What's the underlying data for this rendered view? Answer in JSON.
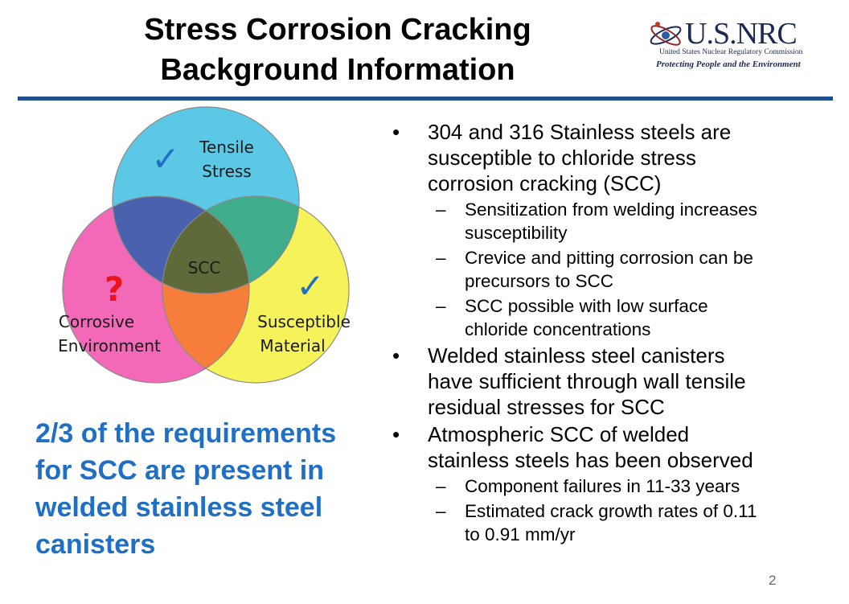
{
  "title": {
    "line1": "Stress Corrosion Cracking",
    "line2": "Background Information"
  },
  "logo": {
    "name": "U.S.NRC",
    "subtitle": "United States Nuclear Regulatory Commission",
    "tagline": "Protecting People and the Environment"
  },
  "venn": {
    "top": {
      "label_line1": "Tensile",
      "label_line2": "Stress",
      "mark": "✓"
    },
    "left": {
      "label_line1": "Corrosive",
      "label_line2": "Environment",
      "mark": "?"
    },
    "right": {
      "label_line1": "Susceptible",
      "label_line2": "Material",
      "mark": "✓"
    },
    "center": "SCC",
    "colors": {
      "top": "#5bc8e6",
      "left": "#f468b8",
      "right": "#f6f25a",
      "check": "#1f6fc4",
      "question": "#e8141b"
    }
  },
  "callout": {
    "line1": "2/3 of the requirements",
    "line2": "for SCC are present in",
    "line3": "welded stainless steel",
    "line4": "canisters"
  },
  "bullets": [
    {
      "bullet": "•",
      "lines": [
        "304 and 316 Stainless steels are",
        "susceptible to chloride stress",
        "corrosion cracking (SCC)"
      ],
      "subs": [
        {
          "dash": "–",
          "lines": [
            "Sensitization from welding increases",
            "susceptibility"
          ]
        },
        {
          "dash": "–",
          "lines": [
            "Crevice and pitting corrosion can be",
            "precursors to SCC"
          ]
        },
        {
          "dash": "–",
          "lines": [
            "SCC possible with low surface",
            "chloride concentrations"
          ]
        }
      ]
    },
    {
      "bullet": "•",
      "lines": [
        "Welded stainless steel canisters",
        "have sufficient through wall tensile",
        "residual stresses for SCC"
      ],
      "subs": []
    },
    {
      "bullet": "•",
      "lines": [
        "Atmospheric SCC of welded",
        "stainless steels has been observed"
      ],
      "subs": [
        {
          "dash": "–",
          "lines": [
            "Component failures in 11-33 years"
          ]
        },
        {
          "dash": "–",
          "lines": [
            "Estimated crack growth rates of 0.11",
            "to 0.91 mm/yr"
          ]
        }
      ]
    }
  ],
  "page_number": "2",
  "accent_color": "#1f4e8c"
}
